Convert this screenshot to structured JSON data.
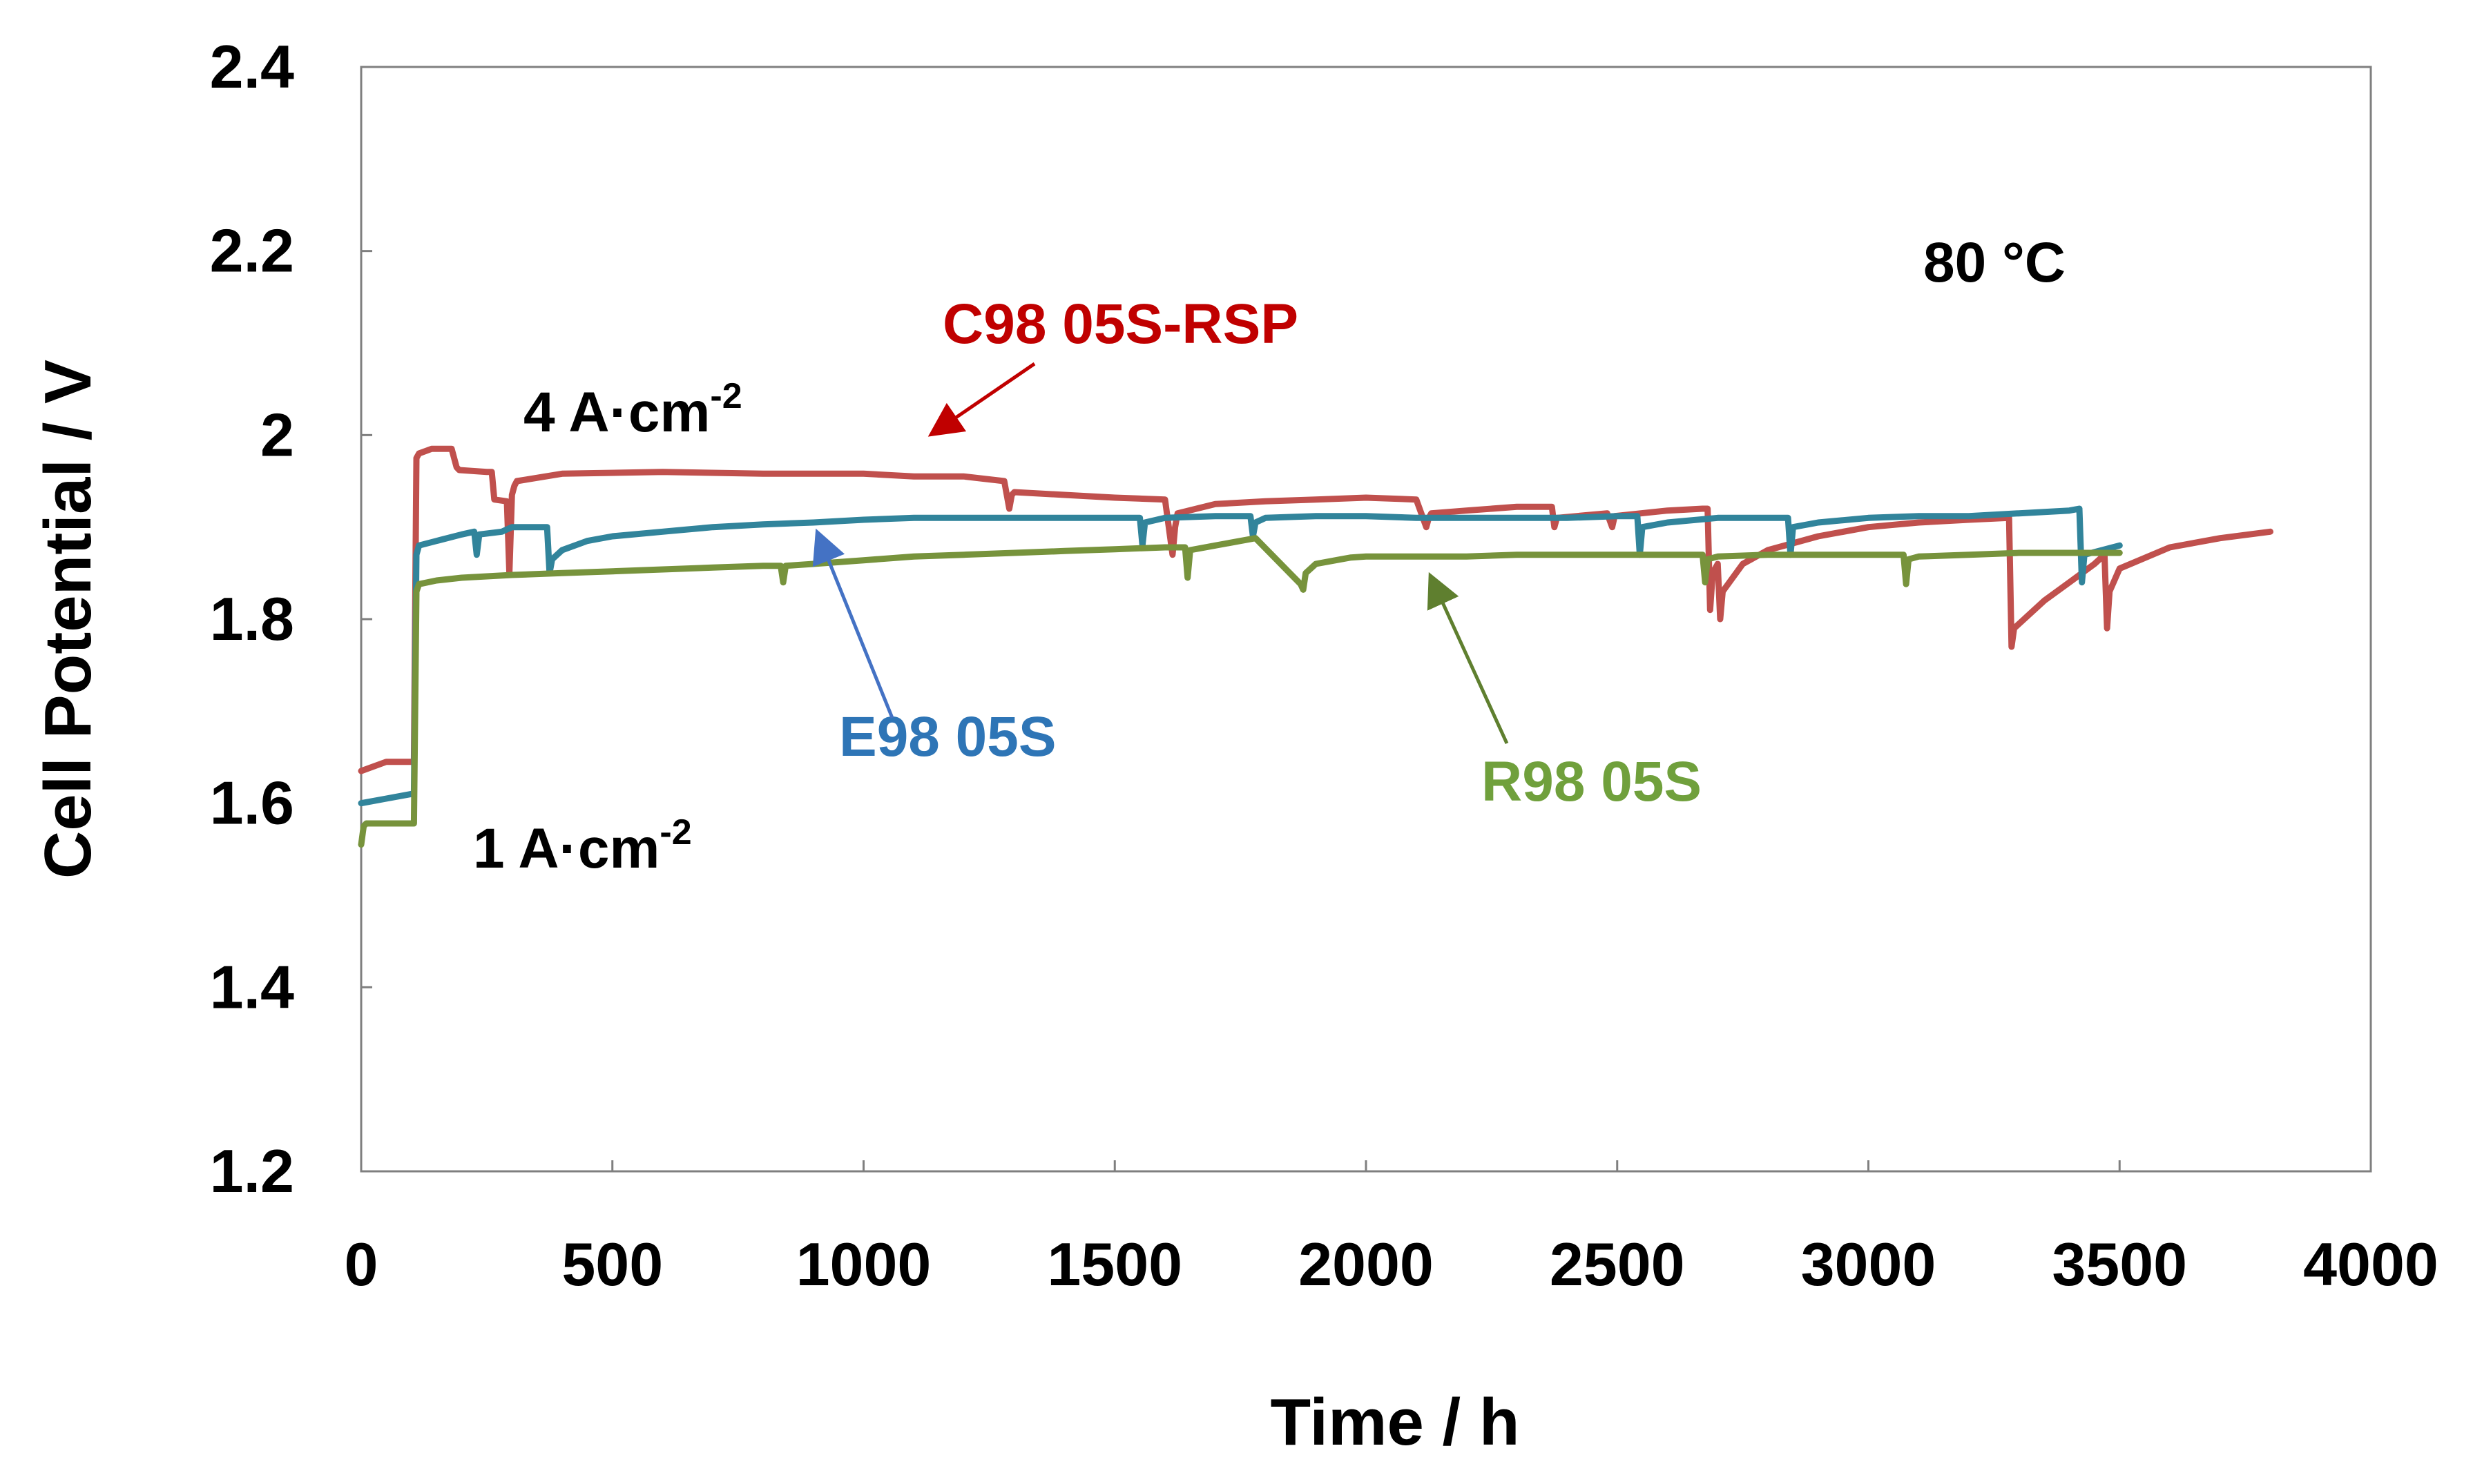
{
  "chart_data": {
    "type": "line",
    "title": "",
    "xlabel": "Time / h",
    "ylabel": "Cell Potential / V",
    "xlim": [
      0,
      4000
    ],
    "ylim": [
      1.2,
      2.4
    ],
    "xticks": [
      0,
      500,
      1000,
      1500,
      2000,
      2500,
      3000,
      3500,
      4000
    ],
    "yticks": [
      1.2,
      1.4,
      1.6,
      1.8,
      2.0,
      2.2,
      2.4
    ],
    "xtick_labels": [
      "0",
      "500",
      "1000",
      "1500",
      "2000",
      "2500",
      "3000",
      "3500",
      "4000"
    ],
    "ytick_labels": [
      "1.2",
      "1.4",
      "1.6",
      "1.8",
      "2",
      "2.2",
      "2.4"
    ],
    "grid": false,
    "series": [
      {
        "name": "C98 05S-RSP",
        "color": "#c0504d",
        "x": [
          0,
          50,
          105,
          110,
          115,
          140,
          180,
          190,
          195,
          250,
          260,
          265,
          290,
          295,
          300,
          305,
          310,
          400,
          600,
          800,
          1000,
          1100,
          1200,
          1280,
          1290,
          1295,
          1300,
          1400,
          1500,
          1600,
          1615,
          1620,
          1625,
          1700,
          1800,
          1900,
          2000,
          2100,
          2120,
          2125,
          2130,
          2200,
          2300,
          2370,
          2375,
          2380,
          2480,
          2490,
          2495,
          2600,
          2670,
          2680,
          2685,
          2690,
          2700,
          2705,
          2710,
          2750,
          2800,
          2900,
          3000,
          3100,
          3200,
          3280,
          3285,
          3290,
          3350,
          3400,
          3450,
          3470,
          3475,
          3480,
          3500,
          3600,
          3700,
          3800
        ],
        "values": [
          1.635,
          1.645,
          1.645,
          1.975,
          1.98,
          1.985,
          1.985,
          1.965,
          1.962,
          1.96,
          1.96,
          1.93,
          1.928,
          1.85,
          1.935,
          1.945,
          1.95,
          1.958,
          1.96,
          1.958,
          1.958,
          1.955,
          1.955,
          1.95,
          1.92,
          1.935,
          1.938,
          1.935,
          1.932,
          1.93,
          1.87,
          1.9,
          1.915,
          1.925,
          1.928,
          1.93,
          1.932,
          1.93,
          1.9,
          1.91,
          1.915,
          1.918,
          1.922,
          1.922,
          1.9,
          1.91,
          1.915,
          1.9,
          1.912,
          1.918,
          1.92,
          1.92,
          1.81,
          1.85,
          1.86,
          1.8,
          1.83,
          1.86,
          1.875,
          1.89,
          1.9,
          1.905,
          1.908,
          1.91,
          1.77,
          1.79,
          1.82,
          1.84,
          1.86,
          1.87,
          1.79,
          1.83,
          1.855,
          1.878,
          1.888,
          1.895
        ]
      },
      {
        "name": "E98 05S",
        "color": "#31849b",
        "x": [
          0,
          50,
          100,
          105,
          110,
          115,
          150,
          200,
          225,
          230,
          235,
          280,
          300,
          320,
          370,
          375,
          380,
          400,
          450,
          500,
          600,
          700,
          800,
          900,
          1000,
          1100,
          1200,
          1300,
          1400,
          1500,
          1550,
          1555,
          1560,
          1600,
          1700,
          1770,
          1775,
          1780,
          1800,
          1900,
          2000,
          2100,
          2200,
          2300,
          2400,
          2500,
          2540,
          2545,
          2550,
          2600,
          2700,
          2800,
          2840,
          2845,
          2850,
          2900,
          3000,
          3100,
          3200,
          3300,
          3400,
          3420,
          3425,
          3430,
          3500
        ],
        "values": [
          1.6,
          1.605,
          1.61,
          1.61,
          1.87,
          1.88,
          1.885,
          1.892,
          1.895,
          1.87,
          1.892,
          1.895,
          1.9,
          1.9,
          1.9,
          1.85,
          1.865,
          1.875,
          1.885,
          1.89,
          1.895,
          1.9,
          1.903,
          1.905,
          1.908,
          1.91,
          1.91,
          1.91,
          1.91,
          1.91,
          1.91,
          1.88,
          1.905,
          1.91,
          1.912,
          1.912,
          1.89,
          1.905,
          1.91,
          1.912,
          1.912,
          1.91,
          1.91,
          1.91,
          1.91,
          1.912,
          1.912,
          1.87,
          1.9,
          1.905,
          1.91,
          1.91,
          1.91,
          1.87,
          1.9,
          1.905,
          1.91,
          1.912,
          1.912,
          1.915,
          1.918,
          1.92,
          1.84,
          1.87,
          1.88
        ]
      },
      {
        "name": "R98 05S",
        "color": "#77933c",
        "x": [
          0,
          5,
          10,
          50,
          100,
          105,
          110,
          115,
          150,
          200,
          300,
          400,
          500,
          600,
          700,
          800,
          835,
          840,
          845,
          900,
          1000,
          1100,
          1200,
          1300,
          1400,
          1500,
          1600,
          1640,
          1645,
          1650,
          1700,
          1750,
          1780,
          1870,
          1875,
          1880,
          1900,
          1950,
          1970,
          2000,
          2100,
          2200,
          2300,
          2400,
          2500,
          2600,
          2670,
          2675,
          2680,
          2700,
          2800,
          2900,
          3000,
          3070,
          3075,
          3080,
          3100,
          3200,
          3300,
          3400,
          3500
        ],
        "values": [
          1.555,
          1.575,
          1.578,
          1.578,
          1.578,
          1.578,
          1.83,
          1.838,
          1.842,
          1.845,
          1.848,
          1.85,
          1.852,
          1.854,
          1.856,
          1.858,
          1.858,
          1.84,
          1.858,
          1.86,
          1.864,
          1.868,
          1.87,
          1.872,
          1.874,
          1.876,
          1.878,
          1.878,
          1.845,
          1.875,
          1.88,
          1.885,
          1.888,
          1.838,
          1.832,
          1.85,
          1.86,
          1.865,
          1.867,
          1.868,
          1.868,
          1.868,
          1.87,
          1.87,
          1.87,
          1.87,
          1.87,
          1.84,
          1.865,
          1.868,
          1.87,
          1.87,
          1.87,
          1.87,
          1.838,
          1.865,
          1.868,
          1.87,
          1.872,
          1.872,
          1.872
        ]
      }
    ],
    "annotations": [
      {
        "id": "temp",
        "text": "80 °C",
        "color": "#000000"
      },
      {
        "id": "high_current",
        "text": "4 A·cm",
        "sup": "-2",
        "color": "#000000"
      },
      {
        "id": "low_current",
        "text": "1 A·cm",
        "sup": "-2",
        "color": "#000000"
      },
      {
        "id": "label_c98",
        "text": "C98 05S-RSP",
        "color": "#c00000"
      },
      {
        "id": "label_e98",
        "text": "E98 05S",
        "color": "#2e75b6"
      },
      {
        "id": "label_r98",
        "text": "R98 05S",
        "color": "#70a03c"
      }
    ]
  }
}
